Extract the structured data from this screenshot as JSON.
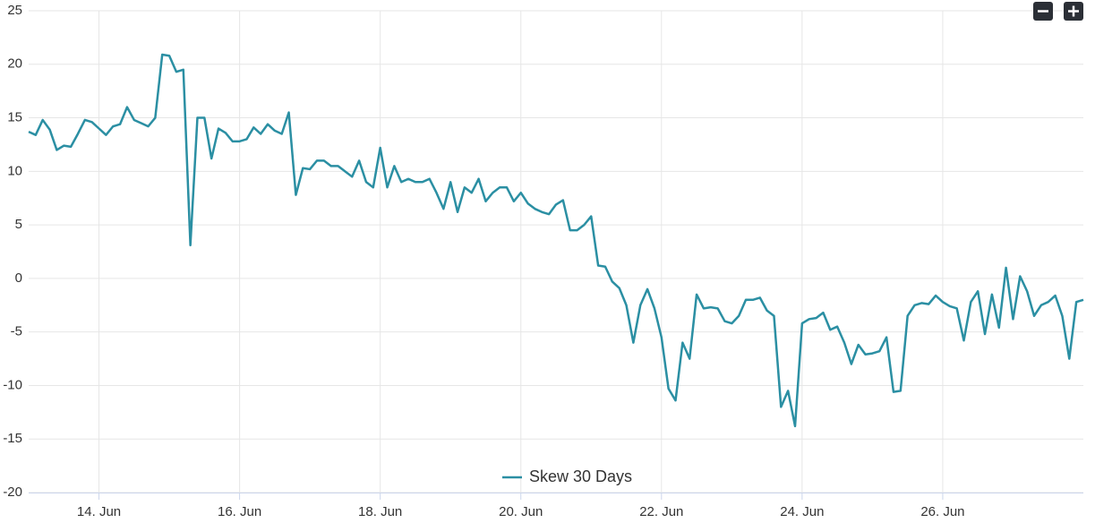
{
  "chart_data": {
    "type": "line",
    "x": [
      13.0,
      13.1,
      13.2,
      13.3,
      13.4,
      13.5,
      13.6,
      13.7,
      13.8,
      13.9,
      14.0,
      14.1,
      14.2,
      14.3,
      14.4,
      14.5,
      14.6,
      14.7,
      14.8,
      14.9,
      15.0,
      15.1,
      15.2,
      15.3,
      15.4,
      15.5,
      15.6,
      15.7,
      15.8,
      15.9,
      16.0,
      16.1,
      16.2,
      16.3,
      16.4,
      16.5,
      16.6,
      16.7,
      16.8,
      16.9,
      17.0,
      17.1,
      17.2,
      17.3,
      17.4,
      17.5,
      17.6,
      17.7,
      17.8,
      17.9,
      18.0,
      18.1,
      18.2,
      18.3,
      18.4,
      18.5,
      18.6,
      18.7,
      18.8,
      18.9,
      19.0,
      19.1,
      19.2,
      19.3,
      19.4,
      19.5,
      19.6,
      19.7,
      19.8,
      19.9,
      20.0,
      20.1,
      20.2,
      20.3,
      20.4,
      20.5,
      20.6,
      20.7,
      20.8,
      20.9,
      21.0,
      21.1,
      21.2,
      21.3,
      21.4,
      21.5,
      21.6,
      21.7,
      21.8,
      21.9,
      22.0,
      22.1,
      22.2,
      22.3,
      22.4,
      22.5,
      22.6,
      22.7,
      22.8,
      22.9,
      23.0,
      23.1,
      23.2,
      23.3,
      23.4,
      23.5,
      23.6,
      23.7,
      23.8,
      23.9,
      24.0,
      24.1,
      24.2,
      24.3,
      24.4,
      24.5,
      24.6,
      24.7,
      24.8,
      24.9,
      25.0,
      25.1,
      25.2,
      25.3,
      25.4,
      25.5,
      25.6,
      25.7,
      25.8,
      25.9,
      26.0,
      26.1,
      26.2,
      26.3,
      26.4,
      26.5,
      26.6,
      26.7,
      26.8,
      26.9,
      27.0,
      27.1,
      27.2,
      27.3,
      27.4,
      27.5,
      27.6,
      27.7,
      27.8,
      27.9,
      28.0
    ],
    "series": [
      {
        "name": "Skew 30 Days",
        "color": "#2b8fa3",
        "values": [
          13.7,
          13.4,
          14.8,
          13.9,
          12.0,
          12.4,
          12.3,
          13.5,
          14.8,
          14.6,
          14.0,
          13.4,
          14.2,
          14.4,
          16.0,
          14.8,
          14.5,
          14.2,
          15.0,
          20.9,
          20.8,
          19.3,
          19.5,
          3.1,
          15.0,
          15.0,
          11.2,
          14.0,
          13.6,
          12.8,
          12.8,
          13.0,
          14.1,
          13.5,
          14.4,
          13.8,
          13.5,
          15.5,
          7.8,
          10.3,
          10.2,
          11.0,
          11.0,
          10.5,
          10.5,
          10.0,
          9.5,
          11.0,
          9.0,
          8.5,
          12.2,
          8.5,
          10.5,
          9.0,
          9.3,
          9.0,
          9.0,
          9.3,
          8.0,
          6.5,
          9.0,
          6.2,
          8.5,
          8.0,
          9.3,
          7.2,
          8.0,
          8.5,
          8.5,
          7.2,
          8.0,
          7.0,
          6.5,
          6.2,
          6.0,
          6.9,
          7.3,
          4.5,
          4.5,
          5.0,
          5.8,
          1.2,
          1.1,
          -0.3,
          -0.9,
          -2.5,
          -6.0,
          -2.5,
          -1.0,
          -2.8,
          -5.5,
          -10.3,
          -11.4,
          -6.0,
          -7.5,
          -1.5,
          -2.8,
          -2.7,
          -2.8,
          -4.0,
          -4.2,
          -3.5,
          -2.0,
          -2.0,
          -1.8,
          -3.0,
          -3.5,
          -12.0,
          -10.5,
          -13.8,
          -4.2,
          -3.8,
          -3.7,
          -3.2,
          -4.8,
          -4.5,
          -6.0,
          -8.0,
          -6.2,
          -7.1,
          -7.0,
          -6.8,
          -5.5,
          -10.6,
          -10.5,
          -3.5,
          -2.5,
          -2.3,
          -2.4,
          -1.6,
          -2.2,
          -2.6,
          -2.8,
          -5.8,
          -2.2,
          -1.2,
          -5.2,
          -1.5,
          -4.6,
          1.0,
          -3.8,
          0.2,
          -1.2,
          -3.5,
          -2.5,
          -2.2,
          -1.6,
          -3.5,
          -7.5,
          -2.2,
          -2.0
        ]
      }
    ],
    "xlim": [
      13,
      28
    ],
    "xticks": [
      {
        "value": 14,
        "label": "14. Jun"
      },
      {
        "value": 16,
        "label": "16. Jun"
      },
      {
        "value": 18,
        "label": "18. Jun"
      },
      {
        "value": 20,
        "label": "20. Jun"
      },
      {
        "value": 22,
        "label": "22. Jun"
      },
      {
        "value": 24,
        "label": "24. Jun"
      },
      {
        "value": 26,
        "label": "26. Jun"
      }
    ],
    "ylim": [
      -20,
      25
    ],
    "yticks": [
      -20,
      -15,
      -10,
      -5,
      0,
      5,
      10,
      15,
      20,
      25
    ],
    "grid": true,
    "legend": "bottom"
  }
}
